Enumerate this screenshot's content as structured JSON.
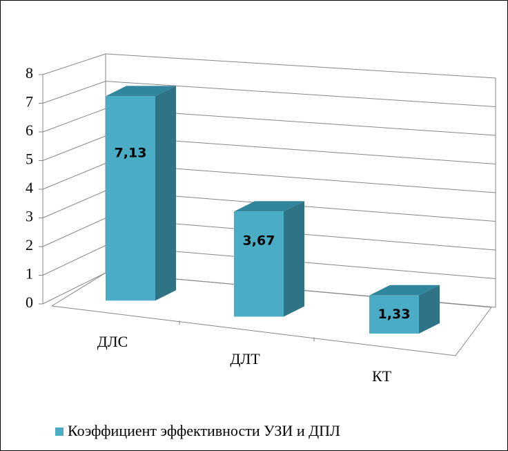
{
  "chart_data": {
    "type": "bar",
    "categories": [
      "ДЛС",
      "ДЛТ",
      "КТ"
    ],
    "series": [
      {
        "name": "Коэффициент эффективности УЗИ и ДПЛ",
        "color": "#4bacc6",
        "values": [
          7.13,
          3.67,
          1.33
        ],
        "value_labels": [
          "7,13",
          "3,67",
          "1,33"
        ]
      }
    ],
    "ylim": [
      0,
      8
    ],
    "yticks": [
      0,
      1,
      2,
      3,
      4,
      5,
      6,
      7,
      8
    ],
    "grid": true,
    "legend": "bottom"
  }
}
